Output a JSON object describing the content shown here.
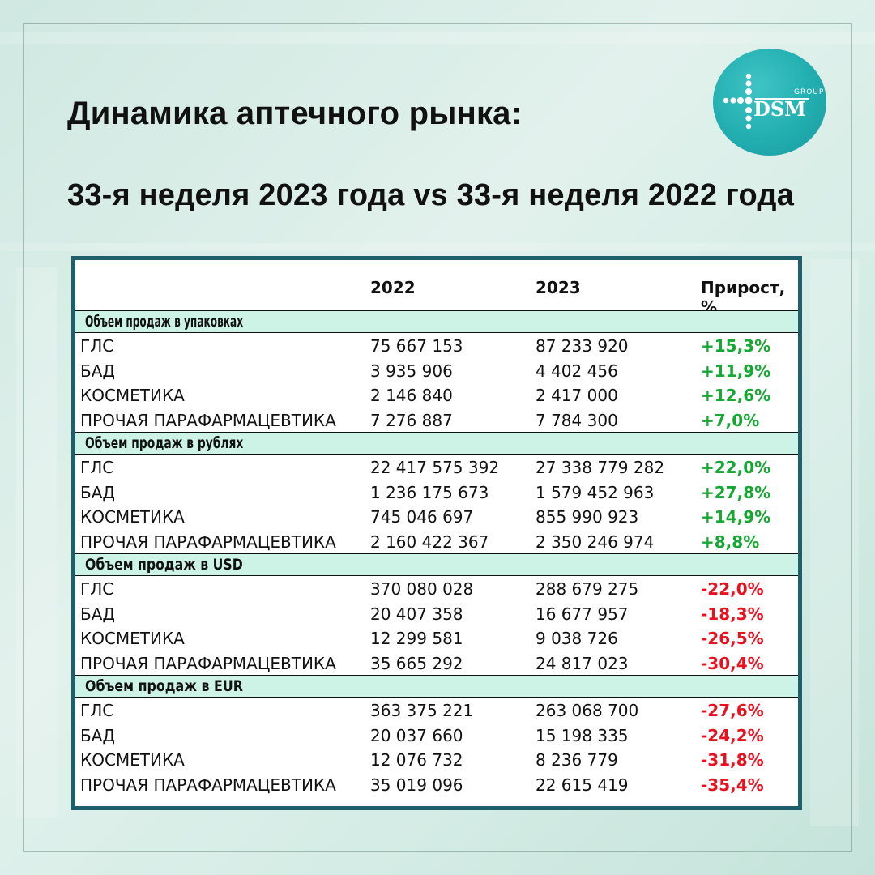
{
  "header": {
    "title": "Динамика аптечного рынка:",
    "subtitle": "33-я неделя 2023 года vs 33-я неделя 2022 года"
  },
  "logo": {
    "brand": "DSM",
    "small_text": "GROUP",
    "color": "#22aeb0"
  },
  "table": {
    "columns": [
      "",
      "2022",
      "2023",
      "Прирост, %"
    ],
    "sections": [
      {
        "title": "Объем продаж в упаковках",
        "rows": [
          [
            "ГЛС",
            "75 667 153",
            "87 233 920",
            "+15,3%"
          ],
          [
            "БАД",
            "3 935 906",
            "4 402 456",
            "+11,9%"
          ],
          [
            "КОСМЕТИКА",
            "2 146 840",
            "2 417 000",
            "+12,6%"
          ],
          [
            "ПРОЧАЯ ПАРАФАРМАЦЕВТИКА",
            "7 276 887",
            "7 784 300",
            "+7,0%"
          ]
        ]
      },
      {
        "title": "Объем продаж в рублях",
        "rows": [
          [
            "ГЛС",
            "22 417 575 392",
            "27 338 779 282",
            "+22,0%"
          ],
          [
            "БАД",
            "1 236 175 673",
            "1 579 452 963",
            "+27,8%"
          ],
          [
            "КОСМЕТИКА",
            "745 046 697",
            "855 990 923",
            "+14,9%"
          ],
          [
            "ПРОЧАЯ ПАРАФАРМАЦЕВТИКА",
            "2 160 422 367",
            "2 350 246 974",
            "+8,8%"
          ]
        ]
      },
      {
        "title": "Объем продаж в USD",
        "rows": [
          [
            "ГЛС",
            "370 080 028",
            "288 679 275",
            "-22,0%"
          ],
          [
            "БАД",
            "20 407 358",
            "16 677 957",
            "-18,3%"
          ],
          [
            "КОСМЕТИКА",
            "12 299 581",
            "9 038 726",
            "-26,5%"
          ],
          [
            "ПРОЧАЯ ПАРАФАРМАЦЕВТИКА",
            "35 665 292",
            "24 817 023",
            "-30,4%"
          ]
        ]
      },
      {
        "title": "Объем продаж в EUR",
        "rows": [
          [
            "ГЛС",
            "363 375 221",
            "263 068 700",
            "-27,6%"
          ],
          [
            "БАД",
            "20 037 660",
            "15 198 335",
            "-24,2%"
          ],
          [
            "КОСМЕТИКА",
            "12 076 732",
            "8 236 779",
            "-31,8%"
          ],
          [
            "ПРОЧАЯ ПАРАФАРМАЦЕВТИКА",
            "35 019 096",
            "22 615 419",
            "-35,4%"
          ]
        ]
      }
    ],
    "colors": {
      "positive": "#16a833",
      "negative": "#e8111f",
      "section_bg": "#ccf3e6",
      "border": "#1e5f6b"
    }
  }
}
